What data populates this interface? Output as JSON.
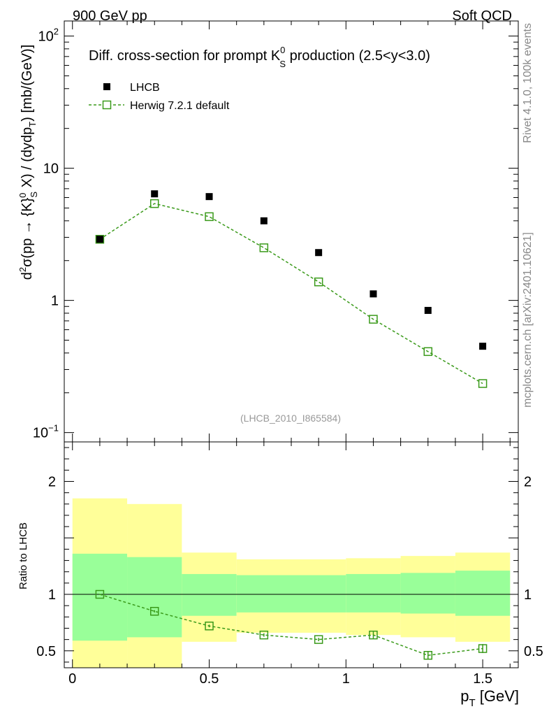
{
  "header": {
    "left": "900 GeV pp",
    "right": "Soft QCD"
  },
  "side_labels": {
    "rivet": "Rivet 4.1.0,  100k events",
    "mcplots": "mcplots.cern.ch [arXiv:2401.10621]"
  },
  "main_plot": {
    "title_prefix": "Diff. cross-section for prompt K",
    "title_sup": "0",
    "title_sub": "S",
    "title_suffix": " production (2.5<y<3.0)",
    "ylabel": "d²σ(pp → {K}⁰S X) / (dydpT) [mb/(GeV)]",
    "ylabel_parts": {
      "d": "d",
      "d_sup": "2",
      "sigma": "σ(pp → {K}",
      "k_sup": "0",
      "k_sub": "S",
      "mid": " X) / (dydp",
      "t_sub": "T",
      "end": ") [mb/(GeV)]"
    },
    "analysis_id": "(LHCB_2010_I865584)",
    "y_ticks": [
      {
        "value": 0.1,
        "base": "10",
        "exp": "−1"
      },
      {
        "value": 1,
        "base": "1",
        "exp": ""
      },
      {
        "value": 10,
        "base": "10",
        "exp": ""
      },
      {
        "value": 100,
        "base": "10",
        "exp": "2"
      }
    ]
  },
  "ratio_plot": {
    "ylabel": "Ratio to LHCB",
    "y_ticks": [
      {
        "value": 0.5,
        "label": "0.5"
      },
      {
        "value": 1,
        "label": "1"
      },
      {
        "value": 2,
        "label": "2"
      }
    ]
  },
  "x_axis": {
    "label": "p",
    "label_sub": "T",
    "label_unit": " [GeV]",
    "ticks": [
      {
        "value": 0,
        "label": "0"
      },
      {
        "value": 0.5,
        "label": "0.5"
      },
      {
        "value": 1,
        "label": "1"
      },
      {
        "value": 1.5,
        "label": "1.5"
      }
    ]
  },
  "colors": {
    "data": "#000000",
    "mc": "#3a9a1a",
    "band_inner": "#99ff99",
    "band_outer": "#ffff99"
  },
  "chart_data": [
    {
      "type": "scatter",
      "title": "Diff. cross-section for prompt K0S production (2.5<y<3.0)",
      "xlabel": "pT [GeV]",
      "ylabel": "d2σ(pp → {K}0S X) / (dydpT) [mb/(GeV)]",
      "yscale": "log",
      "xlim": [
        -0.03,
        1.63
      ],
      "ylim": [
        0.085,
        130
      ],
      "legend_position": "top-left",
      "series": [
        {
          "name": "LHCB",
          "marker": "filled-square",
          "x": [
            0.1,
            0.3,
            0.5,
            0.7,
            0.9,
            1.1,
            1.3,
            1.5
          ],
          "values": [
            2.9,
            6.4,
            6.1,
            4.0,
            2.3,
            1.12,
            0.84,
            0.45
          ]
        },
        {
          "name": "Herwig 7.2.1 default",
          "marker": "open-square-dashed-line",
          "x": [
            0.1,
            0.3,
            0.5,
            0.7,
            0.9,
            1.1,
            1.3,
            1.5
          ],
          "values": [
            2.9,
            5.4,
            4.3,
            2.5,
            1.38,
            0.72,
            0.41,
            0.235
          ]
        }
      ]
    },
    {
      "type": "line",
      "title": "Ratio to LHCB",
      "xlabel": "pT [GeV]",
      "ylabel": "Ratio to LHCB",
      "xlim": [
        -0.03,
        1.63
      ],
      "ylim": [
        0.35,
        2.35
      ],
      "reference_line": 1,
      "series": [
        {
          "name": "Herwig 7.2.1 default / LHCB",
          "x": [
            0.1,
            0.3,
            0.5,
            0.7,
            0.9,
            1.1,
            1.3,
            1.5
          ],
          "values": [
            1.0,
            0.85,
            0.72,
            0.64,
            0.6,
            0.64,
            0.46,
            0.52
          ],
          "errors": [
            0.005,
            0.01,
            0.012,
            0.015,
            0.015,
            0.03,
            0.035,
            0.04
          ]
        }
      ],
      "uncertainty_bands": [
        {
          "x_low": 0.0,
          "x_high": 0.2,
          "inner": [
            0.59,
            1.36
          ],
          "outer": [
            0.35,
            1.85
          ]
        },
        {
          "x_low": 0.2,
          "x_high": 0.4,
          "inner": [
            0.62,
            1.33
          ],
          "outer": [
            0.35,
            1.8
          ]
        },
        {
          "x_low": 0.4,
          "x_high": 0.6,
          "inner": [
            0.81,
            1.18
          ],
          "outer": [
            0.58,
            1.37
          ]
        },
        {
          "x_low": 0.6,
          "x_high": 0.8,
          "inner": [
            0.84,
            1.17
          ],
          "outer": [
            0.66,
            1.31
          ]
        },
        {
          "x_low": 0.8,
          "x_high": 1.0,
          "inner": [
            0.84,
            1.17
          ],
          "outer": [
            0.66,
            1.31
          ]
        },
        {
          "x_low": 1.0,
          "x_high": 1.2,
          "inner": [
            0.84,
            1.18
          ],
          "outer": [
            0.64,
            1.32
          ]
        },
        {
          "x_low": 1.2,
          "x_high": 1.4,
          "inner": [
            0.83,
            1.19
          ],
          "outer": [
            0.62,
            1.34
          ]
        },
        {
          "x_low": 1.4,
          "x_high": 1.6,
          "inner": [
            0.81,
            1.21
          ],
          "outer": [
            0.58,
            1.37
          ]
        }
      ]
    }
  ]
}
